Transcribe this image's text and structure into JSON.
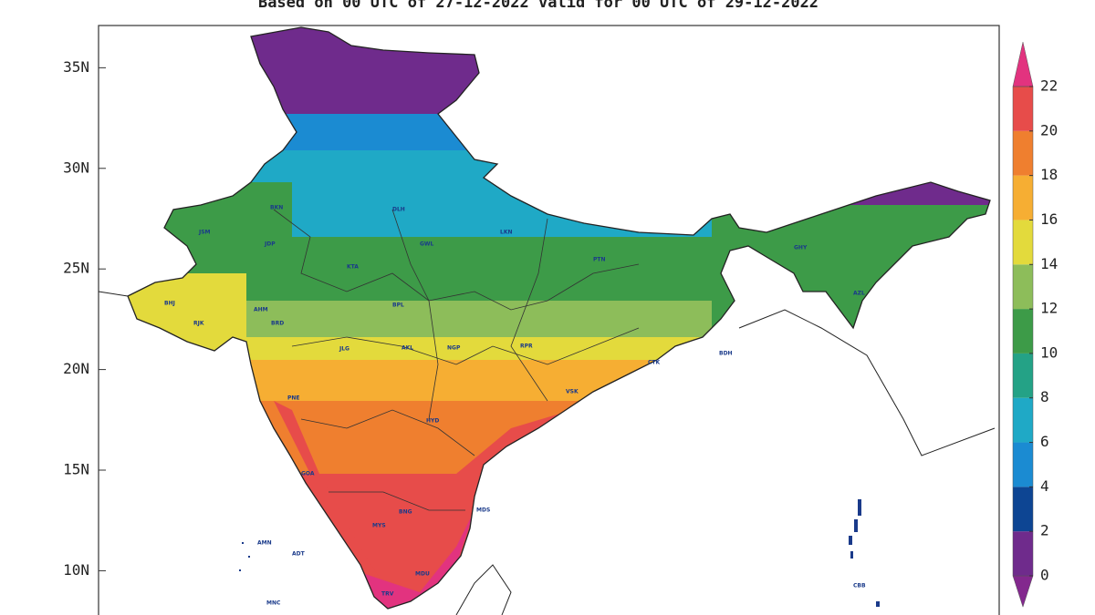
{
  "header": {
    "title": "Based on 00 UTC of 27-12-2022 valid for 00 UTC of 29-12-2022"
  },
  "map": {
    "lat_range": [
      7.8,
      37.1
    ],
    "lat_ticks": [
      {
        "value": 35,
        "label": "35N"
      },
      {
        "value": 30,
        "label": "30N"
      },
      {
        "value": 25,
        "label": "25N"
      },
      {
        "value": 20,
        "label": "20N"
      },
      {
        "value": 15,
        "label": "15N"
      },
      {
        "value": 10,
        "label": "10N"
      }
    ],
    "stations": [
      "JSM",
      "JDP",
      "BKN",
      "AHM",
      "BRD",
      "RJK",
      "BHJ",
      "KTA",
      "GWL",
      "BPL",
      "JLG",
      "AKL",
      "NGP",
      "RPR",
      "HYD",
      "PNE",
      "GOA",
      "BNG",
      "MYS",
      "TRV",
      "MDU",
      "MDS",
      "VSK",
      "CTK",
      "PTN",
      "LKN",
      "DLH",
      "GHY",
      "AZL",
      "BDH",
      "AMN",
      "ADT",
      "MNC",
      "CBB"
    ]
  },
  "colorbar": {
    "ticks": [
      0,
      2,
      4,
      6,
      8,
      10,
      12,
      14,
      16,
      18,
      20,
      22
    ],
    "colors": [
      "#83288e",
      "#6f2b8c",
      "#0d4593",
      "#1b8bd2",
      "#1fa9c6",
      "#24a286",
      "#3d9b48",
      "#8dbd5a",
      "#e3da3c",
      "#f6ae33",
      "#ef7f2f",
      "#e74c4a",
      "#e2337f"
    ]
  }
}
